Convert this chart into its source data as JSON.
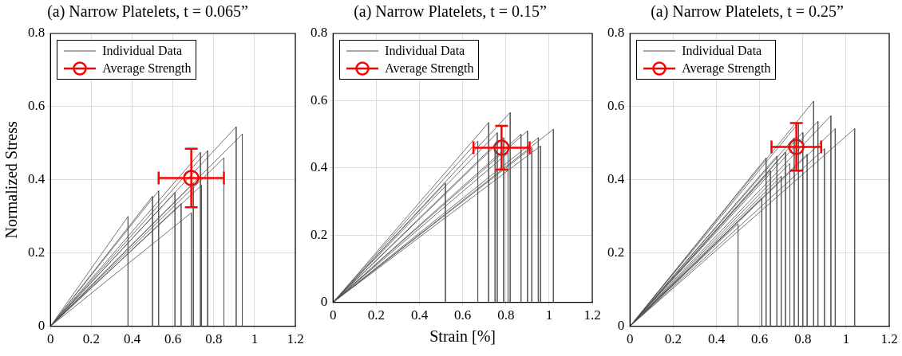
{
  "chart_data": [
    {
      "type": "line",
      "title": "(a) Narrow Platelets, t = 0.065”",
      "ylabel": "Normalized Stress",
      "xlim": [
        0,
        1.2
      ],
      "xticks": [
        0,
        0.2,
        0.4,
        0.6,
        0.8,
        1,
        1.2
      ],
      "ylim": [
        0,
        0.8
      ],
      "yticks": [
        0,
        0.2,
        0.4,
        0.6,
        0.8
      ],
      "grid": true,
      "legend": "top left",
      "series": [
        {
          "name": "Individual Data",
          "type": "line",
          "color": "#505050",
          "x": [
            0,
            0.38,
            0.38,
            null,
            0,
            0.5,
            0.5,
            null,
            0,
            0.53,
            0.53,
            null,
            0,
            0.61,
            0.61,
            null,
            0,
            0.64,
            0.64,
            null,
            0,
            0.69,
            0.69,
            null,
            0,
            0.7,
            0.7,
            null,
            0,
            0.735,
            0.735,
            null,
            0,
            0.74,
            0.74,
            null,
            0,
            0.77,
            0.77,
            null,
            0,
            0.85,
            0.85,
            null,
            0,
            0.91,
            0.91,
            null,
            0,
            0.94,
            0.94
          ],
          "values": [
            0,
            0.3,
            0,
            null,
            0,
            0.355,
            0,
            null,
            0,
            0.37,
            0,
            null,
            0,
            0.365,
            0,
            null,
            0,
            0.335,
            0,
            null,
            0,
            0.31,
            0,
            null,
            0,
            0.39,
            0,
            null,
            0,
            0.475,
            0,
            null,
            0,
            0.385,
            0,
            null,
            0,
            0.48,
            0,
            null,
            0,
            0.46,
            0,
            null,
            0,
            0.545,
            0,
            null,
            0,
            0.525,
            0
          ]
        },
        {
          "name": "Average Strength",
          "type": "scatter",
          "color": "#ff0000",
          "marker": "circle",
          "x": [
            0.69
          ],
          "values": [
            0.405
          ],
          "errors": [
            0.08
          ],
          "xerrors": [
            0.16
          ]
        }
      ]
    },
    {
      "type": "line",
      "title": "(a) Narrow Platelets, t = 0.15”",
      "xlabel": "Strain [%]",
      "xlim": [
        0,
        1.2
      ],
      "xticks": [
        0,
        0.2,
        0.4,
        0.6,
        0.8,
        1,
        1.2
      ],
      "ylim": [
        0,
        0.8
      ],
      "yticks": [
        0,
        0.2,
        0.4,
        0.6,
        0.8
      ],
      "grid": true,
      "legend": "top left",
      "series": [
        {
          "name": "Individual Data",
          "type": "line",
          "color": "#505050",
          "x": [
            0,
            0.52,
            0.52,
            null,
            0,
            0.67,
            0.67,
            null,
            0,
            0.72,
            0.72,
            null,
            0,
            0.75,
            0.75,
            null,
            0,
            0.76,
            0.76,
            null,
            0,
            0.79,
            0.79,
            null,
            0,
            0.81,
            0.81,
            null,
            0,
            0.82,
            0.82,
            null,
            0,
            0.87,
            0.87,
            null,
            0,
            0.9,
            0.9,
            null,
            0,
            0.92,
            0.92,
            null,
            0,
            0.95,
            0.95,
            null,
            0,
            0.96,
            0.96,
            null,
            0,
            1.02,
            1.02
          ],
          "values": [
            0,
            0.355,
            0,
            null,
            0,
            0.48,
            0,
            null,
            0,
            0.535,
            0,
            null,
            0,
            0.47,
            0,
            null,
            0,
            0.505,
            0,
            null,
            0,
            0.49,
            0,
            null,
            0,
            0.445,
            0,
            null,
            0,
            0.565,
            0,
            null,
            0,
            0.5,
            0,
            null,
            0,
            0.51,
            0,
            null,
            0,
            0.46,
            0,
            null,
            0,
            0.49,
            0,
            null,
            0,
            0.465,
            0,
            null,
            0,
            0.515,
            0
          ]
        },
        {
          "name": "Average Strength",
          "type": "scatter",
          "color": "#ff0000",
          "marker": "circle",
          "x": [
            0.78
          ],
          "values": [
            0.46
          ],
          "errors": [
            0.065
          ],
          "xerrors": [
            0.13
          ]
        }
      ]
    },
    {
      "type": "line",
      "title": "(a) Narrow Platelets, t = 0.25”",
      "xlim": [
        0,
        1.2
      ],
      "xticks": [
        0,
        0.2,
        0.4,
        0.6,
        0.8,
        1,
        1.2
      ],
      "ylim": [
        0,
        0.8
      ],
      "yticks": [
        0,
        0.2,
        0.4,
        0.6,
        0.8
      ],
      "grid": true,
      "legend": "top left",
      "series": [
        {
          "name": "Individual Data",
          "type": "line",
          "color": "#505050",
          "x": [
            0,
            0.5,
            0.5,
            null,
            0,
            0.61,
            0.61,
            null,
            0,
            0.63,
            0.63,
            null,
            0,
            0.65,
            0.65,
            null,
            0,
            0.68,
            0.68,
            null,
            0,
            0.7,
            0.7,
            null,
            0,
            0.72,
            0.72,
            null,
            0,
            0.74,
            0.74,
            null,
            0,
            0.76,
            0.76,
            null,
            0,
            0.78,
            0.78,
            null,
            0,
            0.8,
            0.8,
            null,
            0,
            0.82,
            0.82,
            null,
            0,
            0.85,
            0.85,
            null,
            0,
            0.87,
            0.87,
            null,
            0,
            0.9,
            0.9,
            null,
            0,
            0.93,
            0.93,
            null,
            0,
            0.95,
            0.95,
            null,
            0,
            1.04,
            1.04
          ],
          "values": [
            0,
            0.28,
            0,
            null,
            0,
            0.35,
            0,
            null,
            0,
            0.46,
            0,
            null,
            0,
            0.425,
            0,
            null,
            0,
            0.465,
            0,
            null,
            0,
            0.41,
            0,
            null,
            0,
            0.475,
            0,
            null,
            0,
            0.445,
            0,
            null,
            0,
            0.515,
            0,
            null,
            0,
            0.555,
            0,
            null,
            0,
            0.53,
            0,
            null,
            0,
            0.47,
            0,
            null,
            0,
            0.615,
            0,
            null,
            0,
            0.56,
            0,
            null,
            0,
            0.485,
            0,
            null,
            0,
            0.575,
            0,
            null,
            0,
            0.54,
            0,
            null,
            0,
            0.54,
            0
          ]
        },
        {
          "name": "Average Strength",
          "type": "scatter",
          "color": "#ff0000",
          "marker": "circle",
          "x": [
            0.77
          ],
          "values": [
            0.49
          ],
          "errors": [
            0.065
          ],
          "xerrors": [
            0.115
          ]
        }
      ]
    }
  ]
}
